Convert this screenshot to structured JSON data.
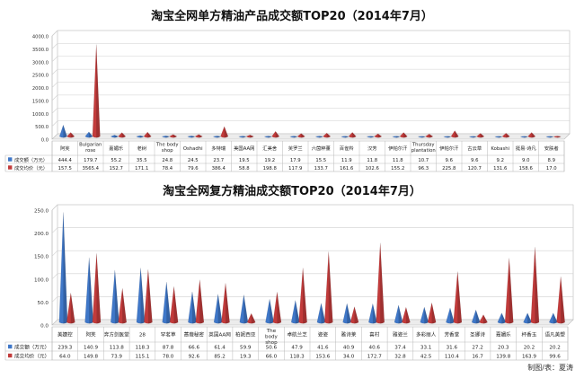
{
  "colors": {
    "blue": "#3f77c8",
    "red": "#c23b3b",
    "grid": "#d0d0d0",
    "border": "#b9b9b9"
  },
  "chart_data": [
    {
      "type": "bar",
      "title": "淘宝全网单方精油产品成交额TOP20（2014年7月）",
      "ylim": [
        0,
        4000
      ],
      "yticks": [
        "0.0",
        "500.0",
        "1000.0",
        "1500.0",
        "2000.0",
        "2500.0",
        "3000.0",
        "3500.0",
        "4000.0"
      ],
      "grid": true,
      "legend": "table-below",
      "categories": [
        "阿芙",
        "Bulgarian rose",
        "嘉媚乐",
        "老树",
        "The body shop",
        "Oshadhi",
        "多特瑞",
        "美国AA网",
        "汇美舍",
        "芙罗兰",
        "六茵粹董",
        "百雀羚",
        "汉芳",
        "伊帕尔汗",
        "Thursday plantation",
        "伊帕尔汗",
        "古云草",
        "Kobashi",
        "挺易·诗凡",
        "安肤者"
      ],
      "series": [
        {
          "name": "成交额（万元）",
          "color": "blue",
          "values": [
            444.4,
            179.7,
            55.2,
            35.5,
            24.8,
            24.5,
            23.7,
            19.5,
            19.2,
            17.9,
            15.5,
            11.9,
            11.8,
            11.8,
            10.7,
            9.6,
            9.6,
            9.2,
            9.0,
            8.9
          ]
        },
        {
          "name": "成交均价（元）",
          "color": "red",
          "values": [
            157.5,
            3565.4,
            152.7,
            171.1,
            78.4,
            79.6,
            386.4,
            58.8,
            198.8,
            117.9,
            133.7,
            161.6,
            102.6,
            155.2,
            96.3,
            225.8,
            120.7,
            131.6,
            158.6,
            17.0
          ]
        }
      ]
    },
    {
      "type": "bar",
      "title": "淘宝全网复方精油成交额TOP20（2014年7月）",
      "ylim": [
        0,
        250
      ],
      "yticks": [
        "0.0",
        "50.0",
        "100.0",
        "150.0",
        "200.0",
        "250.0"
      ],
      "grid": true,
      "legend": "table-below",
      "categories": [
        "美婕控",
        "阿芙",
        "奔方剑医堂",
        "28",
        "罕茗草",
        "蔷薇秘密",
        "英国AA网",
        "柏妮西亚",
        "The body shop",
        "卓航兰芝",
        "姿姿",
        "雅诗莱",
        "喜村",
        "雅姿兰",
        "多彩丽人",
        "芳香堂",
        "圣娜诗",
        "嘉媚乐",
        "杯香玉",
        "语凡美塑"
      ],
      "series": [
        {
          "name": "成交额（万元）",
          "color": "blue",
          "values": [
            239.3,
            140.9,
            113.8,
            118.3,
            87.8,
            66.6,
            61.4,
            59.9,
            50.6,
            47.9,
            41.6,
            40.9,
            40.6,
            37.4,
            33.1,
            31.6,
            27.2,
            20.3,
            20.2,
            20.2
          ]
        },
        {
          "name": "成交均价（元）",
          "color": "red",
          "values": [
            64.0,
            149.8,
            73.9,
            115.1,
            78.0,
            92.6,
            85.2,
            19.3,
            66.0,
            118.3,
            153.6,
            34.0,
            172.7,
            32.8,
            42.5,
            110.4,
            16.7,
            139.8,
            163.9,
            99.6
          ]
        }
      ]
    }
  ],
  "credit": "制图/表：夏涛"
}
